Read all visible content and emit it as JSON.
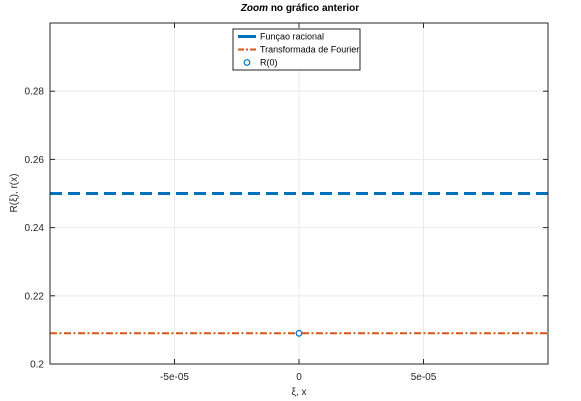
{
  "chart_data": {
    "type": "line",
    "title_italic": "Zoom",
    "title_rest": " no gráfico anterior",
    "xlabel": "ξ, x",
    "ylabel": "R(ξ), r(x)",
    "xlim": [
      -0.0001,
      0.0001
    ],
    "ylim": [
      0.2,
      0.3
    ],
    "xticks": [
      -5e-05,
      0,
      5e-05
    ],
    "xtick_labels": [
      "-5e-05",
      "0",
      "5e-05"
    ],
    "yticks": [
      0.2,
      0.22,
      0.24,
      0.26,
      0.28
    ],
    "ytick_labels": [
      "0.2",
      "0.22",
      "0.24",
      "0.26",
      "0.28"
    ],
    "grid": true,
    "legend_position": "top-center",
    "series": [
      {
        "name": "Funçao racional",
        "style": "dashed",
        "color": "#0072BD",
        "x": [
          -0.0001,
          0.0001
        ],
        "y": [
          0.25,
          0.25
        ]
      },
      {
        "name": "Transformada de Fourier",
        "style": "dash-dot",
        "color": "#D95319",
        "x": [
          -0.0001,
          0.0001
        ],
        "y": [
          0.209,
          0.209
        ]
      },
      {
        "name": "R(0)",
        "style": "marker-circle",
        "color": "#0072BD",
        "x": [
          0
        ],
        "y": [
          0.209
        ]
      }
    ]
  }
}
